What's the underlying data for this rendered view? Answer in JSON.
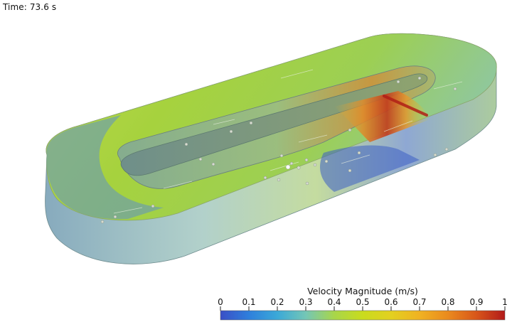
{
  "annotation": {
    "time_text": "Time: 73.6 s"
  },
  "colorbar": {
    "title": "Velocity Magnitude (m/s)",
    "colormap": "turbo",
    "range": [
      0,
      1
    ],
    "tick_labels": [
      "0",
      "0.1",
      "0.2",
      "0.3",
      "0.4",
      "0.5",
      "0.6",
      "0.7",
      "0.8",
      "0.9",
      "1"
    ],
    "stops": [
      "#3a4fc6",
      "#2e7fdc",
      "#3ba9d8",
      "#74c6b6",
      "#a8d64a",
      "#c9dc1e",
      "#e3d020",
      "#f0b222",
      "#ea8a1e",
      "#d8561a",
      "#b21a1a"
    ]
  },
  "scene": {
    "flow_colors": {
      "low": "#4a6cc0",
      "mid_low": "#6fb3c6",
      "mid": "#a4cf52",
      "mid_high": "#c7da2c",
      "high": "#e38a2a",
      "peak": "#c23b1d"
    }
  }
}
